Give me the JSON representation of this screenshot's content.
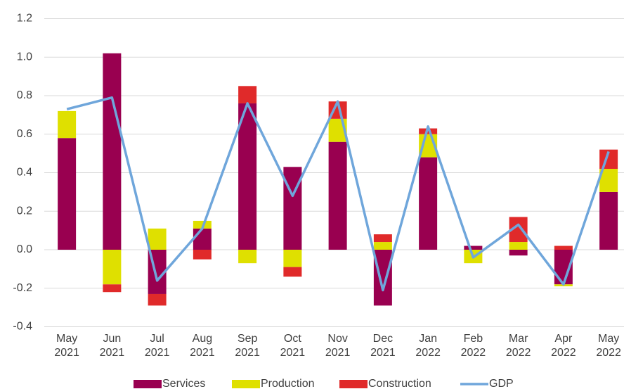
{
  "chart_data": {
    "type": "bar",
    "stacked": true,
    "categories": [
      "May 2021",
      "Jun 2021",
      "Jul 2021",
      "Aug 2021",
      "Sep 2021",
      "Oct 2021",
      "Nov 2021",
      "Dec 2021",
      "Jan 2022",
      "Feb 2022",
      "Mar 2022",
      "Apr 2022",
      "May 2022"
    ],
    "series": [
      {
        "name": "Services",
        "color": "#990050",
        "values": [
          0.58,
          1.02,
          -0.23,
          0.11,
          0.76,
          0.43,
          0.56,
          -0.29,
          0.48,
          0.02,
          -0.03,
          -0.18,
          0.3
        ]
      },
      {
        "name": "Production",
        "color": "#dfe000",
        "values": [
          0.14,
          -0.18,
          0.11,
          0.04,
          -0.07,
          -0.09,
          0.12,
          0.04,
          0.12,
          -0.07,
          0.04,
          -0.01,
          0.12
        ]
      },
      {
        "name": "Construction",
        "color": "#e02a2a",
        "values": [
          0,
          -0.04,
          -0.06,
          -0.05,
          0.09,
          -0.05,
          0.09,
          0.04,
          0.03,
          0,
          0.13,
          0.02,
          0.1
        ]
      },
      {
        "name": "GDP",
        "type": "line",
        "color": "#6fa6db",
        "values": [
          0.73,
          0.79,
          -0.16,
          0.11,
          0.76,
          0.28,
          0.77,
          -0.21,
          0.64,
          -0.04,
          0.13,
          -0.18,
          0.51
        ]
      }
    ],
    "ylim": [
      -0.4,
      1.2
    ],
    "yticks": [
      {
        "value": -0.4,
        "label": "-0.4"
      },
      {
        "value": -0.2,
        "label": "-0.2"
      },
      {
        "value": 0,
        "label": "0.0"
      },
      {
        "value": 0.2,
        "label": "0.2"
      },
      {
        "value": 0.4,
        "label": "0.4"
      },
      {
        "value": 0.6,
        "label": "0.6"
      },
      {
        "value": 0.8,
        "label": "0.8"
      },
      {
        "value": 1.0,
        "label": "1.0"
      },
      {
        "value": 1.2,
        "label": "1.2"
      }
    ],
    "grid": true,
    "legend": "bottom"
  }
}
